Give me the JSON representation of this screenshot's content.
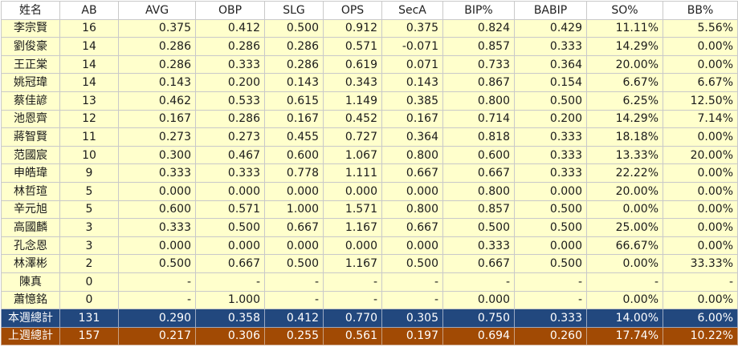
{
  "headers": [
    "姓名",
    "AB",
    "AVG",
    "OBP",
    "SLG",
    "OPS",
    "SecA",
    "BIP%",
    "BABIP",
    "SO%",
    "BB%"
  ],
  "rows": [
    [
      "李宗賢",
      "16",
      "0.375",
      "0.412",
      "0.500",
      "0.912",
      "0.375",
      "0.824",
      "0.429",
      "11.11%",
      "5.56%"
    ],
    [
      "劉俊豪",
      "14",
      "0.286",
      "0.286",
      "0.286",
      "0.571",
      "-0.071",
      "0.857",
      "0.333",
      "14.29%",
      "0.00%"
    ],
    [
      "王正棠",
      "14",
      "0.286",
      "0.333",
      "0.286",
      "0.619",
      "0.071",
      "0.733",
      "0.364",
      "20.00%",
      "0.00%"
    ],
    [
      "姚冠瑋",
      "14",
      "0.143",
      "0.200",
      "0.143",
      "0.343",
      "0.143",
      "0.867",
      "0.154",
      "6.67%",
      "6.67%"
    ],
    [
      "蔡佳諺",
      "13",
      "0.462",
      "0.533",
      "0.615",
      "1.149",
      "0.385",
      "0.800",
      "0.500",
      "6.25%",
      "12.50%"
    ],
    [
      "池恩齊",
      "12",
      "0.167",
      "0.286",
      "0.167",
      "0.452",
      "0.167",
      "0.714",
      "0.200",
      "14.29%",
      "7.14%"
    ],
    [
      "蔣智賢",
      "11",
      "0.273",
      "0.273",
      "0.455",
      "0.727",
      "0.364",
      "0.818",
      "0.333",
      "18.18%",
      "0.00%"
    ],
    [
      "范國宸",
      "10",
      "0.300",
      "0.467",
      "0.600",
      "1.067",
      "0.800",
      "0.600",
      "0.333",
      "13.33%",
      "20.00%"
    ],
    [
      "申皓瑋",
      "9",
      "0.333",
      "0.333",
      "0.778",
      "1.111",
      "0.667",
      "0.667",
      "0.333",
      "22.22%",
      "0.00%"
    ],
    [
      "林哲瑄",
      "5",
      "0.000",
      "0.000",
      "0.000",
      "0.000",
      "0.000",
      "0.800",
      "0.000",
      "20.00%",
      "0.00%"
    ],
    [
      "辛元旭",
      "5",
      "0.600",
      "0.571",
      "1.000",
      "1.571",
      "0.800",
      "0.857",
      "0.500",
      "0.00%",
      "0.00%"
    ],
    [
      "高國麟",
      "3",
      "0.333",
      "0.500",
      "0.667",
      "1.167",
      "0.667",
      "0.500",
      "0.500",
      "25.00%",
      "0.00%"
    ],
    [
      "孔念恩",
      "3",
      "0.000",
      "0.000",
      "0.000",
      "0.000",
      "0.000",
      "0.333",
      "0.000",
      "66.67%",
      "0.00%"
    ],
    [
      "林澤彬",
      "2",
      "0.500",
      "0.667",
      "0.500",
      "1.167",
      "0.500",
      "0.667",
      "0.500",
      "0.00%",
      "33.33%"
    ],
    [
      "陳真",
      "0",
      "-",
      "-",
      "-",
      "-",
      "-",
      "-",
      "-",
      "-",
      "-"
    ],
    [
      "蕭憶銘",
      "0",
      "-",
      "1.000",
      "-",
      "-",
      "-",
      "0.000",
      "-",
      "0.00%",
      "0.00%"
    ]
  ],
  "totals": [
    {
      "kind": "this",
      "cells": [
        "本週總計",
        "131",
        "0.290",
        "0.358",
        "0.412",
        "0.770",
        "0.305",
        "0.750",
        "0.333",
        "14.00%",
        "6.00%"
      ]
    },
    {
      "kind": "last",
      "cells": [
        "上週總計",
        "157",
        "0.217",
        "0.306",
        "0.255",
        "0.561",
        "0.197",
        "0.694",
        "0.260",
        "17.74%",
        "10.22%"
      ]
    }
  ],
  "colors": {
    "row_bg": "#ffffcc",
    "this_week_bg": "#22487e",
    "last_week_bg": "#a14a04",
    "grid": "#c9c9c9"
  }
}
